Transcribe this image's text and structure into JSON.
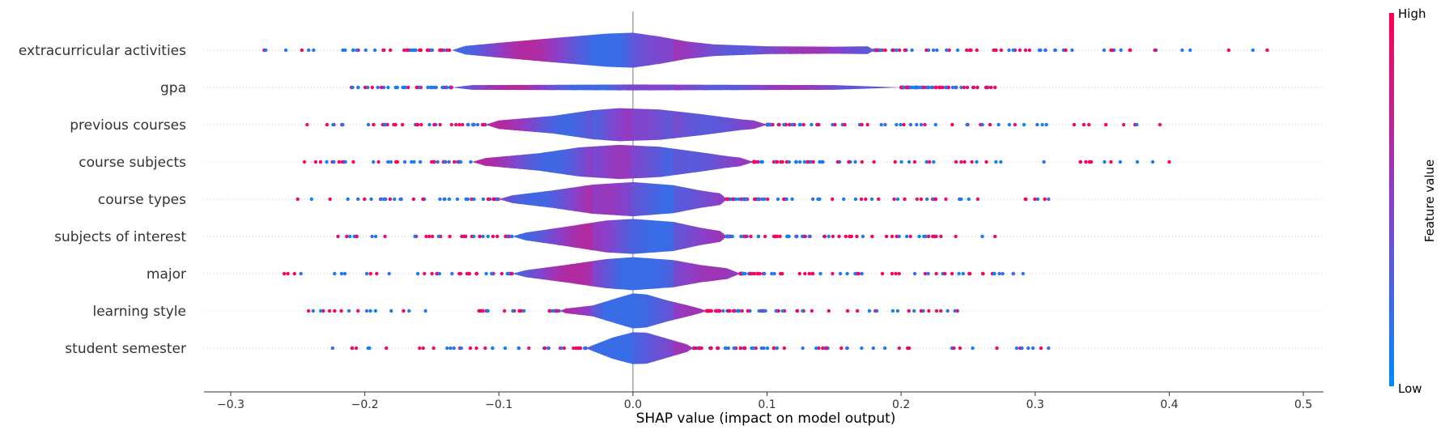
{
  "chart_data": {
    "type": "violin",
    "xlabel": "SHAP value (impact on model output)",
    "xlim": [
      -0.32,
      0.515
    ],
    "xticks": [
      "−0.3",
      "−0.2",
      "−0.1",
      "0.0",
      "0.1",
      "0.2",
      "0.3",
      "0.4",
      "0.5"
    ],
    "xtick_values": [
      -0.3,
      -0.2,
      -0.1,
      0.0,
      0.1,
      0.2,
      0.3,
      0.4,
      0.5
    ],
    "colorbar": {
      "title": "Feature value",
      "high_label": "High",
      "low_label": "Low",
      "color_low": "#008bfb",
      "color_mid": "#8b3fc8",
      "color_high": "#ff0052"
    },
    "features": [
      {
        "name": "extracurricular activities",
        "min": -0.275,
        "max": 0.473,
        "density": [
          [
            -0.135,
            0
          ],
          [
            -0.125,
            0.22
          ],
          [
            -0.1,
            0.38
          ],
          [
            -0.06,
            0.62
          ],
          [
            -0.02,
            0.85
          ],
          [
            0,
            0.9
          ],
          [
            0.02,
            0.7
          ],
          [
            0.04,
            0.45
          ],
          [
            0.06,
            0.3
          ],
          [
            0.1,
            0.2
          ],
          [
            0.15,
            0.18
          ],
          [
            0.175,
            0.2
          ],
          [
            0.18,
            0
          ]
        ]
      },
      {
        "name": "gpa",
        "min": -0.21,
        "max": 0.27,
        "density": [
          [
            -0.135,
            0
          ],
          [
            -0.12,
            0.12
          ],
          [
            0,
            0.15
          ],
          [
            0.15,
            0.12
          ],
          [
            0.2,
            0
          ]
        ]
      },
      {
        "name": "previous courses",
        "min": -0.243,
        "max": 0.393,
        "density": [
          [
            -0.11,
            0
          ],
          [
            -0.1,
            0.22
          ],
          [
            -0.06,
            0.45
          ],
          [
            -0.03,
            0.75
          ],
          [
            -0.01,
            0.85
          ],
          [
            0.02,
            0.78
          ],
          [
            0.05,
            0.55
          ],
          [
            0.08,
            0.28
          ],
          [
            0.09,
            0.22
          ],
          [
            0.1,
            0
          ]
        ]
      },
      {
        "name": "course subjects",
        "min": -0.245,
        "max": 0.4,
        "density": [
          [
            -0.12,
            0
          ],
          [
            -0.11,
            0.2
          ],
          [
            -0.07,
            0.45
          ],
          [
            -0.04,
            0.75
          ],
          [
            -0.01,
            0.88
          ],
          [
            0.02,
            0.78
          ],
          [
            0.05,
            0.5
          ],
          [
            0.07,
            0.3
          ],
          [
            0.08,
            0.22
          ],
          [
            0.09,
            0
          ]
        ]
      },
      {
        "name": "course types",
        "min": -0.25,
        "max": 0.31,
        "density": [
          [
            -0.1,
            0
          ],
          [
            -0.09,
            0.2
          ],
          [
            -0.06,
            0.45
          ],
          [
            -0.03,
            0.75
          ],
          [
            0,
            0.88
          ],
          [
            0.03,
            0.72
          ],
          [
            0.05,
            0.45
          ],
          [
            0.065,
            0.3
          ],
          [
            0.07,
            0
          ]
        ]
      },
      {
        "name": "subjects of interest",
        "min": -0.22,
        "max": 0.27,
        "density": [
          [
            -0.09,
            0
          ],
          [
            -0.08,
            0.2
          ],
          [
            -0.05,
            0.5
          ],
          [
            -0.02,
            0.82
          ],
          [
            0,
            0.9
          ],
          [
            0.03,
            0.75
          ],
          [
            0.05,
            0.45
          ],
          [
            0.065,
            0.28
          ],
          [
            0.07,
            0
          ]
        ]
      },
      {
        "name": "major",
        "min": -0.26,
        "max": 0.291,
        "density": [
          [
            -0.09,
            0
          ],
          [
            -0.08,
            0.18
          ],
          [
            -0.05,
            0.45
          ],
          [
            -0.02,
            0.75
          ],
          [
            0,
            0.85
          ],
          [
            0.03,
            0.7
          ],
          [
            0.05,
            0.45
          ],
          [
            0.07,
            0.28
          ],
          [
            0.08,
            0
          ]
        ]
      },
      {
        "name": "learning style",
        "min": -0.242,
        "max": 0.242,
        "density": [
          [
            -0.055,
            0
          ],
          [
            -0.05,
            0.12
          ],
          [
            -0.03,
            0.28
          ],
          [
            -0.01,
            0.7
          ],
          [
            0,
            0.9
          ],
          [
            0.01,
            0.85
          ],
          [
            0.025,
            0.55
          ],
          [
            0.04,
            0.3
          ],
          [
            0.05,
            0.12
          ],
          [
            0.055,
            0
          ]
        ]
      },
      {
        "name": "student semester",
        "min": -0.224,
        "max": 0.31,
        "density": [
          [
            -0.035,
            0
          ],
          [
            -0.03,
            0.15
          ],
          [
            -0.015,
            0.55
          ],
          [
            0,
            0.82
          ],
          [
            0.01,
            0.8
          ],
          [
            0.025,
            0.5
          ],
          [
            0.04,
            0.2
          ],
          [
            0.045,
            0
          ]
        ]
      }
    ]
  }
}
